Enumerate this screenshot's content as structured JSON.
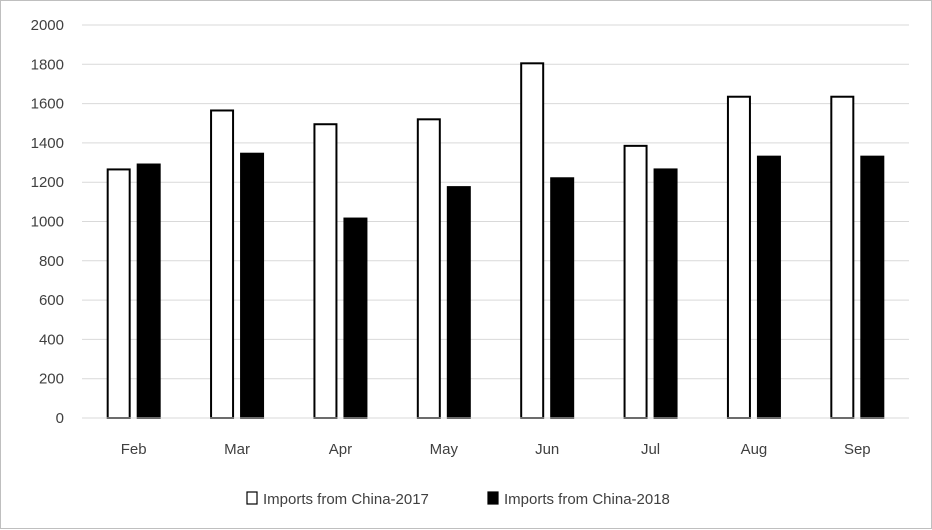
{
  "chart_data": {
    "type": "bar",
    "categories": [
      "Feb",
      "Mar",
      "Apr",
      "May",
      "Jun",
      "Jul",
      "Aug",
      "Sep"
    ],
    "series": [
      {
        "name": "Imports from China-2017",
        "values": [
          1265,
          1565,
          1495,
          1520,
          1805,
          1385,
          1635,
          1635
        ],
        "color": "#ffffff",
        "stroke": "#000000"
      },
      {
        "name": "Imports from China-2018",
        "values": [
          1290,
          1345,
          1015,
          1175,
          1220,
          1265,
          1330,
          1330
        ],
        "color": "#000000",
        "stroke": "#000000"
      }
    ],
    "ylim": [
      0,
      2000
    ],
    "yticks": [
      0,
      200,
      400,
      600,
      800,
      1000,
      1200,
      1400,
      1600,
      1800,
      2000
    ],
    "grid": true,
    "legend_position": "bottom"
  }
}
